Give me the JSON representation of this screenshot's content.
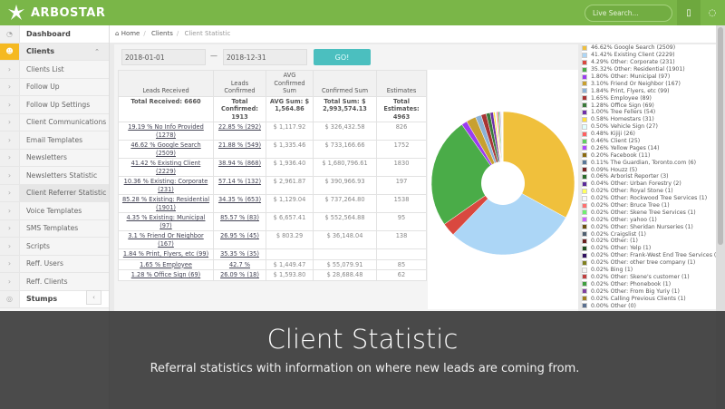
{
  "app": {
    "brand": "ARBOSTAR",
    "search_placeholder": "Live Search...",
    "accent": "#7ab648"
  },
  "sidebar": [
    {
      "label": "Dashboard",
      "icon": "dashboard-icon",
      "type": "top"
    },
    {
      "label": "Clients",
      "icon": "users-icon",
      "type": "open"
    },
    {
      "label": "Clients List"
    },
    {
      "label": "Follow Up"
    },
    {
      "label": "Follow Up Settings"
    },
    {
      "label": "Client Communications"
    },
    {
      "label": "Email Templates"
    },
    {
      "label": "Newsletters"
    },
    {
      "label": "Newsletters Statistic"
    },
    {
      "label": "Client Referrer Statistic",
      "active": true
    },
    {
      "label": "Voice Templates"
    },
    {
      "label": "SMS Templates"
    },
    {
      "label": "Scripts"
    },
    {
      "label": "Reff. Users"
    },
    {
      "label": "Reff. Clients"
    },
    {
      "label": "Stumps",
      "icon": "target-icon",
      "type": "top"
    }
  ],
  "breadcrumb": {
    "home": "Home",
    "clients": "Clients",
    "current": "Client Statistic"
  },
  "filter": {
    "from": "2018-01-01",
    "to": "2018-12-31",
    "go": "GO!"
  },
  "table": {
    "headers": [
      "Leads Received",
      "Leads Confirmed",
      "AVG Confirmed Sum",
      "Confirmed Sum",
      "Estimates"
    ],
    "totals": [
      "Total Received: 6660",
      "Total Confirmed: 1913",
      "AVG Sum: $ 1,564.86",
      "Total Sum: $ 2,993,574.13",
      "Total Estimates: 4963"
    ],
    "rows": [
      [
        "19.19 % No Info Provided (1278)",
        "22.85 % (292)",
        "$ 1,117.92",
        "$ 326,432.58",
        "826"
      ],
      [
        "46.62 % Google Search (2509)",
        "21.88 % (549)",
        "$ 1,335.46",
        "$ 733,166.66",
        "1752"
      ],
      [
        "41.42 % Existing Client (2229)",
        "38.94 % (868)",
        "$ 1,936.40",
        "$ 1,680,796.61",
        "1830"
      ],
      [
        "10.36 % Existing: Corporate (231)",
        "57.14 % (132)",
        "$ 2,961.87",
        "$ 390,966.93",
        "197"
      ],
      [
        "85.28 % Existing: Residential (1901)",
        "34.35 % (653)",
        "$ 1,129.04",
        "$ 737,264.80",
        "1538"
      ],
      [
        "4.35 % Existing: Municipal (97)",
        "85.57 % (83)",
        "$ 6,657.41",
        "$ 552,564.88",
        "95"
      ],
      [
        "3.1 % Friend Or Neighbor (167)",
        "26.95 % (45)",
        "$ 803.29",
        "$ 36,148.04",
        "138"
      ],
      [
        "1.84 % Print, Flyers, etc (99)",
        "35.35 % (35)",
        "",
        "",
        ""
      ],
      [
        "1.65 % Employee",
        "42.7 %",
        "$ 1,449.47",
        "$ 55,079.91",
        "85"
      ],
      [
        "1.28 % Office Sign (69)",
        "26.09 % (18)",
        "$ 1,593.80",
        "$ 28,688.48",
        "62"
      ]
    ]
  },
  "chart_data": {
    "type": "pie",
    "donut": true,
    "slices": [
      {
        "label": "46.62% Google Search (2509)",
        "value": 2509,
        "color": "#f0c03c"
      },
      {
        "label": "41.42% Existing Client (2229)",
        "value": 2229,
        "color": "#acd6f6"
      },
      {
        "label": "4.29% Other: Corporate (231)",
        "value": 231,
        "color": "#d9483f"
      },
      {
        "label": "35.32% Other: Residential (1901)",
        "value": 1901,
        "color": "#4aac48"
      },
      {
        "label": "1.80% Other: Municipal (97)",
        "value": 97,
        "color": "#9b3cf0"
      },
      {
        "label": "3.10% Friend Or Neighbor (167)",
        "value": 167,
        "color": "#c8a030"
      },
      {
        "label": "1.84% Print, Flyers, etc (99)",
        "value": 99,
        "color": "#8cb2d6"
      },
      {
        "label": "1.65% Employee (89)",
        "value": 89,
        "color": "#a83434"
      },
      {
        "label": "1.28% Office Sign (69)",
        "value": 69,
        "color": "#3a7a3a"
      },
      {
        "label": "1.00% Tree Fellers (54)",
        "value": 54,
        "color": "#7030a8"
      },
      {
        "label": "0.58% Homestars (31)",
        "value": 31,
        "color": "#ffe040"
      },
      {
        "label": "0.50% Vehicle Sign (27)",
        "value": 27,
        "color": "#e0ffff"
      },
      {
        "label": "0.48% Kijiji (26)",
        "value": 26,
        "color": "#ff6060"
      },
      {
        "label": "0.46% Client (25)",
        "value": 25,
        "color": "#60d060"
      },
      {
        "label": "0.26% Yellow Pages (14)",
        "value": 14,
        "color": "#b048ff"
      },
      {
        "label": "0.20% Facebook (11)",
        "value": 11,
        "color": "#8a6a10"
      },
      {
        "label": "0.11% The Guardian, Toronto.com (6)",
        "value": 6,
        "color": "#5a7898"
      },
      {
        "label": "0.09% Houzz (5)",
        "value": 5,
        "color": "#7a2424"
      },
      {
        "label": "0.06% Arborist Reporter (3)",
        "value": 3,
        "color": "#2a6a2a"
      },
      {
        "label": "0.04% Other: Urban Forestry (2)",
        "value": 2,
        "color": "#5a2a9a"
      },
      {
        "label": "0.02% Other: Royal Stone (1)",
        "value": 1,
        "color": "#ffff60"
      },
      {
        "label": "0.02% Other: Rockwood Tree Services (1)",
        "value": 1,
        "color": "#f8f8ff"
      },
      {
        "label": "0.02% Other: Bruce Tree (1)",
        "value": 1,
        "color": "#ff7070"
      },
      {
        "label": "0.02% Other: Skene Tree Services (1)",
        "value": 1,
        "color": "#70f070"
      },
      {
        "label": "0.02% Other: yahoo (1)",
        "value": 1,
        "color": "#d060ff"
      },
      {
        "label": "0.02% Other: Sheridan Nurseries (1)",
        "value": 1,
        "color": "#6a5010"
      },
      {
        "label": "0.02% Craigslist (1)",
        "value": 1,
        "color": "#506070"
      },
      {
        "label": "0.02% Other: (1)",
        "value": 1,
        "color": "#6a2020"
      },
      {
        "label": "0.02% Other: Yelp (1)",
        "value": 1,
        "color": "#1f4f1f"
      },
      {
        "label": "0.02% Other: Frank-West End Tree Services (1)",
        "value": 1,
        "color": "#301060"
      },
      {
        "label": "0.02% Other: other tree company (1)",
        "value": 1,
        "color": "#808020"
      },
      {
        "label": "0.02% Bing (1)",
        "value": 1,
        "color": "#f4f4f4"
      },
      {
        "label": "0.02% Other: Skene's customer (1)",
        "value": 1,
        "color": "#c04040"
      },
      {
        "label": "0.02% Other: Phonebook (1)",
        "value": 1,
        "color": "#40a040"
      },
      {
        "label": "0.02% Other: From Big Yuriy (1)",
        "value": 1,
        "color": "#8040a0"
      },
      {
        "label": "0.02% Calling Previous Clients (1)",
        "value": 1,
        "color": "#a08020"
      },
      {
        "label": "0.00% Other (0)",
        "value": 0,
        "color": "#5a7090"
      }
    ]
  },
  "overlay": {
    "title": "Client Statistic",
    "subtitle": "Referral statistics with information on where new leads are coming from."
  }
}
